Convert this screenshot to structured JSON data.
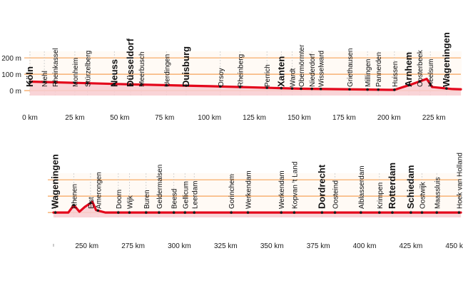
{
  "chart_data": [
    {
      "type": "area",
      "y_unit": "m",
      "x_unit": "km",
      "xlim": [
        0,
        240
      ],
      "ylim": [
        -30,
        240
      ],
      "y_ticks": [
        0,
        100,
        200
      ],
      "y_tick_labels": [
        "0 m",
        "100 m",
        "200 m"
      ],
      "x_ticks": [
        0,
        25,
        50,
        75,
        100,
        125,
        150,
        175,
        200,
        225
      ],
      "x_tick_labels": [
        "0 km",
        "25 km",
        "50 km",
        "75 km",
        "100 km",
        "125 km",
        "150 km",
        "175 km",
        "200 km",
        "225 km"
      ],
      "grid": true,
      "profile": {
        "x": [
          0,
          50,
          100,
          150,
          200,
          203,
          213,
          221,
          224,
          235,
          240
        ],
        "y": [
          55,
          40,
          27,
          12,
          5,
          5,
          40,
          72,
          22,
          10,
          8
        ]
      },
      "places": [
        {
          "name": "Köln",
          "km": 0,
          "major": true
        },
        {
          "name": "Niehl",
          "km": 8,
          "major": false
        },
        {
          "name": "Rheinkassel",
          "km": 14,
          "major": false
        },
        {
          "name": "Monheim",
          "km": 25,
          "major": false
        },
        {
          "name": "Stürzelberg",
          "km": 32,
          "major": false
        },
        {
          "name": "Neuss",
          "km": 47,
          "major": true
        },
        {
          "name": "Düsseldorf",
          "km": 56,
          "major": true
        },
        {
          "name": "Meerbusch",
          "km": 62,
          "major": false
        },
        {
          "name": "Uerdingen",
          "km": 76,
          "major": false
        },
        {
          "name": "Duisburg",
          "km": 87,
          "major": true
        },
        {
          "name": "Orsoy",
          "km": 106,
          "major": false
        },
        {
          "name": "Rheinberg",
          "km": 117,
          "major": false
        },
        {
          "name": "Perrich",
          "km": 132,
          "major": false
        },
        {
          "name": "Xanten",
          "km": 140,
          "major": true
        },
        {
          "name": "Wardt",
          "km": 146,
          "major": false
        },
        {
          "name": "Obermörmter",
          "km": 151,
          "major": false
        },
        {
          "name": "Niederdorf",
          "km": 157,
          "major": false
        },
        {
          "name": "Wisselward",
          "km": 162,
          "major": false
        },
        {
          "name": "Griethausen",
          "km": 178,
          "major": false
        },
        {
          "name": "Millingen",
          "km": 188,
          "major": false
        },
        {
          "name": "Pannerden",
          "km": 194,
          "major": false
        },
        {
          "name": "Huissen",
          "km": 203,
          "major": false
        },
        {
          "name": "Arnhem",
          "km": 211,
          "major": true
        },
        {
          "name": "Oosterbeek",
          "km": 217,
          "major": false
        },
        {
          "name": "Heelsum",
          "km": 223,
          "major": false
        },
        {
          "name": "Wageningen",
          "km": 232,
          "major": true
        }
      ]
    },
    {
      "type": "area",
      "y_unit": "m",
      "x_unit": "km",
      "xlim": [
        232,
        452
      ],
      "ylim": [
        -30,
        240
      ],
      "x_ticks": [
        250,
        275,
        300,
        325,
        350,
        375,
        400,
        425,
        450
      ],
      "x_tick_labels": [
        "250 km",
        "275 km",
        "300 km",
        "325 km",
        "350 km",
        "375 km",
        "400 km",
        "425 km",
        "450 km"
      ],
      "grid": true,
      "profile": {
        "x": [
          232,
          240,
          243,
          246,
          249,
          253,
          255,
          260,
          452
        ],
        "y": [
          0,
          0,
          45,
          5,
          35,
          65,
          15,
          0,
          0
        ]
      },
      "places": [
        {
          "name": "Wageningen",
          "km": 233,
          "major": true
        },
        {
          "name": "Rhenen",
          "km": 243,
          "major": false
        },
        {
          "name": "Elst",
          "km": 252,
          "major": false
        },
        {
          "name": "Amerongen",
          "km": 256,
          "major": false
        },
        {
          "name": "Doorn",
          "km": 267,
          "major": false
        },
        {
          "name": "Wijk",
          "km": 273,
          "major": false
        },
        {
          "name": "Buren",
          "km": 282,
          "major": false
        },
        {
          "name": "Geldermalsen",
          "km": 289,
          "major": false
        },
        {
          "name": "Beesd",
          "km": 297,
          "major": false
        },
        {
          "name": "Gellicum",
          "km": 303,
          "major": false
        },
        {
          "name": "Leerdam",
          "km": 308,
          "major": false
        },
        {
          "name": "Gorinchem",
          "km": 328,
          "major": false
        },
        {
          "name": "Werkendam",
          "km": 337,
          "major": false
        },
        {
          "name": "Werkendam",
          "km": 355,
          "major": false
        },
        {
          "name": "Kopvan 't Land",
          "km": 362,
          "major": false
        },
        {
          "name": "Dordrecht",
          "km": 377,
          "major": true
        },
        {
          "name": "Oosteind",
          "km": 384,
          "major": false
        },
        {
          "name": "Alblasserdam",
          "km": 398,
          "major": false
        },
        {
          "name": "Krimpen",
          "km": 408,
          "major": false
        },
        {
          "name": "Rotterdam",
          "km": 415,
          "major": true
        },
        {
          "name": "Schiedam",
          "km": 425,
          "major": true
        },
        {
          "name": "Oostwijk",
          "km": 431,
          "major": false
        },
        {
          "name": "Maassluis",
          "km": 439,
          "major": false
        },
        {
          "name": "Hoek van Holland",
          "km": 451,
          "major": false
        }
      ]
    }
  ]
}
